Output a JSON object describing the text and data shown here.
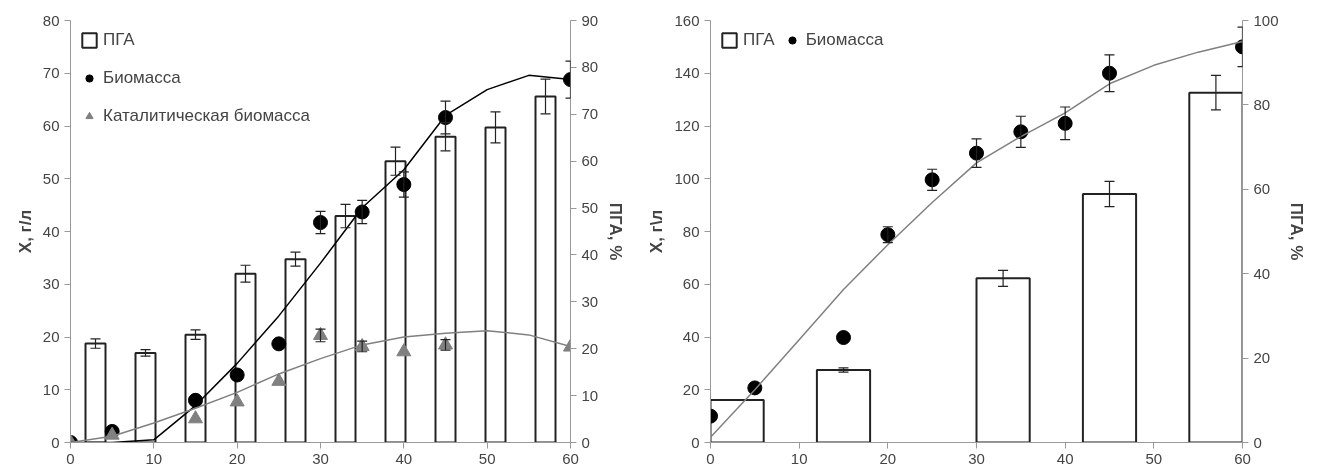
{
  "chart_data": [
    {
      "type": "scatter",
      "xlim": [
        0,
        60
      ],
      "xticks": [
        0,
        10,
        20,
        30,
        40,
        50,
        60
      ],
      "ylim": [
        0,
        80
      ],
      "yticks": [
        0,
        10,
        20,
        30,
        40,
        50,
        60,
        70,
        80
      ],
      "y2lim": [
        0,
        90
      ],
      "y2ticks": [
        0,
        10,
        20,
        30,
        40,
        50,
        60,
        70,
        80,
        90
      ],
      "ylabel": "X, г/л",
      "y2label": "ПГА, %",
      "grid": false,
      "legend": "top left",
      "series": [
        {
          "name": "ПГА",
          "type": "bar",
          "axis": "y2",
          "color": "#ffffff",
          "x": [
            3,
            9,
            15,
            21,
            27,
            33,
            39,
            45,
            51,
            57
          ],
          "values": [
            21.1,
            19.1,
            23,
            36,
            39.1,
            48.3,
            60,
            65.2,
            67.2,
            73.8
          ],
          "errors": [
            1,
            0.7,
            1,
            1.8,
            1.5,
            2.5,
            3,
            3,
            3.3,
            3.7
          ]
        },
        {
          "name": "Биомасса",
          "marker": "circle",
          "color": "#000000",
          "x": [
            0,
            5,
            15,
            20,
            25,
            30,
            35,
            40,
            45,
            60
          ],
          "values": [
            0,
            2.1,
            8,
            12.8,
            18.7,
            41.7,
            43.7,
            48.9,
            61.6,
            68.8
          ],
          "errors": [
            null,
            null,
            null,
            null,
            null,
            2.1,
            2.2,
            2.4,
            3.1,
            3.5
          ]
        },
        {
          "name": "Каталитическая биомасса",
          "marker": "triangle",
          "color": "#808080",
          "x": [
            0,
            5,
            15,
            20,
            25,
            30,
            35,
            40,
            45,
            60
          ],
          "values": [
            0,
            1.4,
            4.5,
            7.7,
            11.6,
            20.3,
            18.2,
            17.2,
            18.5,
            18.1
          ],
          "errors": [
            null,
            null,
            null,
            null,
            null,
            1.2,
            1,
            null,
            1,
            null
          ]
        },
        {
          "type": "line",
          "color": "#000000",
          "x": [
            0,
            5,
            10,
            15,
            20,
            25,
            30,
            35,
            40,
            45,
            50,
            55,
            60
          ],
          "values": [
            0,
            0,
            0.5,
            7,
            15,
            24,
            34,
            44.5,
            51.7,
            62,
            66.9,
            69.6,
            68.8
          ]
        },
        {
          "type": "line",
          "color": "#808080",
          "x": [
            0,
            5,
            10,
            15,
            20,
            25,
            30,
            35,
            40,
            45,
            50,
            55,
            60
          ],
          "values": [
            0,
            1.2,
            3.7,
            6.5,
            9.5,
            13,
            15.9,
            18.5,
            20,
            20.7,
            21.2,
            20.4,
            18.2
          ]
        }
      ]
    },
    {
      "type": "scatter",
      "xlim": [
        0,
        60
      ],
      "xticks": [
        0,
        10,
        20,
        30,
        40,
        50,
        60
      ],
      "ylim": [
        0,
        160
      ],
      "yticks": [
        0,
        20,
        40,
        60,
        80,
        100,
        120,
        140,
        160
      ],
      "y2lim": [
        0,
        100
      ],
      "y2ticks": [
        0,
        20,
        40,
        60,
        80,
        100
      ],
      "ylabel": "X, г\\л",
      "y2label": "ПГА, %",
      "grid": false,
      "legend": "top left",
      "series": [
        {
          "name": "ПГА",
          "type": "bar",
          "axis": "y2",
          "color": "#ffffff",
          "x": [
            3,
            15,
            33,
            45,
            57
          ],
          "values": [
            10.1,
            17.2,
            38.9,
            58.9,
            82.9
          ],
          "errors": [
            null,
            0.5,
            1.9,
            3,
            4.1
          ]
        },
        {
          "name": "Биомасса",
          "marker": "circle",
          "color": "#000000",
          "x": [
            0,
            5,
            15,
            20,
            25,
            30,
            35,
            40,
            45,
            60
          ],
          "values": [
            10,
            20.7,
            39.8,
            78.8,
            99.6,
            109.7,
            117.8,
            121,
            140,
            150
          ],
          "errors": [
            null,
            null,
            null,
            3,
            4,
            5.4,
            5.9,
            6.2,
            7,
            7.5
          ]
        },
        {
          "type": "line",
          "color": "#808080",
          "x": [
            0,
            5,
            10,
            15,
            20,
            25,
            30,
            35,
            40,
            45,
            50,
            55,
            60
          ],
          "values": [
            2,
            20,
            39,
            58,
            75,
            91,
            106,
            116,
            125,
            136,
            143,
            148,
            152
          ]
        }
      ]
    }
  ]
}
